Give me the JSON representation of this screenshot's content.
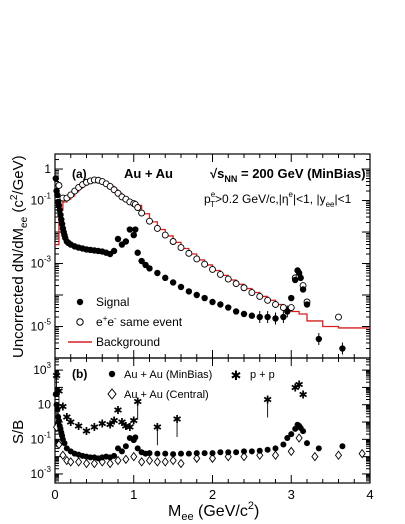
{
  "chart_data": [
    {
      "type": "scatter",
      "panel_label": "(a)",
      "title": "Au + Au",
      "energy_text": "√s",
      "energy_sub": "NN",
      "energy_value": " = 200 GeV (MinBias)",
      "cuts_text": "p",
      "cuts_sup": "e",
      "cuts_sub": "T",
      "cuts_rest": ">0.2 GeV/c,|η",
      "cuts_sup2": "e",
      "cuts_rest2": "|<1,  |y",
      "cuts_sub2": "ee",
      "cuts_rest3": "|<1",
      "ylabel": "Uncorrected dN/dM",
      "ylabel_sub": "ee",
      "ylabel_unit": " (c",
      "ylabel_sup": "2",
      "ylabel_tail": "/GeV)",
      "yscale": "log",
      "xlim": [
        0,
        4
      ],
      "ylim": [
        1e-06,
        3
      ],
      "y_ticks": [
        {
          "v": 1,
          "label": "1"
        },
        {
          "v": 0.1,
          "label": "10",
          "exp": "-1"
        },
        {
          "v": 0.001,
          "label": "10",
          "exp": "-3"
        },
        {
          "v": 1e-05,
          "label": "10",
          "exp": "-5"
        }
      ],
      "legend": {
        "placement": "bottom-left",
        "entries": [
          {
            "name": "Signal",
            "marker": "filled-circle"
          },
          {
            "name": "e",
            "sup": "+",
            "name2": "e",
            "sup2": "-",
            "name3": " same event",
            "marker": "open-circle"
          },
          {
            "name": "Background",
            "marker": "red-line"
          }
        ]
      },
      "series": [
        {
          "name": "Signal",
          "color": "#000000",
          "marker": "filled-circle",
          "x": [
            0.01,
            0.02,
            0.03,
            0.04,
            0.05,
            0.06,
            0.07,
            0.08,
            0.09,
            0.1,
            0.11,
            0.12,
            0.13,
            0.15,
            0.17,
            0.2,
            0.25,
            0.3,
            0.35,
            0.4,
            0.45,
            0.5,
            0.55,
            0.6,
            0.65,
            0.7,
            0.75,
            0.8,
            0.85,
            0.9,
            0.95,
            1.0,
            1.02,
            1.05,
            1.1,
            1.15,
            1.2,
            1.3,
            1.4,
            1.5,
            1.6,
            1.7,
            1.8,
            1.9,
            2.0,
            2.1,
            2.2,
            2.3,
            2.4,
            2.5,
            2.6,
            2.7,
            2.8,
            2.9,
            2.95,
            3.0,
            3.05,
            3.08,
            3.1,
            3.12,
            3.15,
            3.2,
            3.35,
            3.65
          ],
          "y": [
            0.5,
            0.2,
            0.15,
            0.09,
            0.07,
            0.05,
            0.035,
            0.025,
            0.018,
            0.013,
            0.01,
            0.008,
            0.0065,
            0.005,
            0.0045,
            0.004,
            0.0035,
            0.0032,
            0.003,
            0.0028,
            0.0027,
            0.0026,
            0.0025,
            0.0024,
            0.0022,
            0.002,
            0.0025,
            0.006,
            0.004,
            0.005,
            0.012,
            0.008,
            0.012,
            0.0022,
            0.0012,
            0.0009,
            0.0007,
            0.0005,
            0.00035,
            0.00025,
            0.00018,
            0.00013,
            0.0001,
            8e-05,
            6e-05,
            5e-05,
            4e-05,
            3e-05,
            2.5e-05,
            2.2e-05,
            2e-05,
            2e-05,
            1.8e-05,
            2e-05,
            3e-05,
            8e-05,
            0.0003,
            0.0006,
            0.0005,
            0.00035,
            0.00015,
            5e-05,
            4e-06,
            2e-06
          ]
        },
        {
          "name": "e+e- same event",
          "color": "#000000",
          "marker": "open-circle",
          "x": [
            0.05,
            0.1,
            0.15,
            0.2,
            0.25,
            0.3,
            0.35,
            0.4,
            0.45,
            0.5,
            0.55,
            0.6,
            0.65,
            0.7,
            0.75,
            0.8,
            0.85,
            0.9,
            0.95,
            1.0,
            1.02,
            1.05,
            1.1,
            1.2,
            1.3,
            1.4,
            1.5,
            1.6,
            1.7,
            1.8,
            1.9,
            2.0,
            2.1,
            2.2,
            2.3,
            2.4,
            2.5,
            2.6,
            2.7,
            2.8,
            2.9,
            3.0,
            3.05,
            3.1,
            3.15,
            3.2,
            3.6
          ],
          "y": [
            0.3,
            0.12,
            0.12,
            0.15,
            0.2,
            0.26,
            0.32,
            0.38,
            0.42,
            0.45,
            0.44,
            0.4,
            0.34,
            0.28,
            0.22,
            0.17,
            0.13,
            0.11,
            0.09,
            0.08,
            0.075,
            0.06,
            0.04,
            0.022,
            0.013,
            0.008,
            0.005,
            0.0032,
            0.0021,
            0.0014,
            0.00095,
            0.00065,
            0.00045,
            0.00032,
            0.00023,
            0.00017,
            0.00012,
            9e-05,
            6.8e-05,
            5e-05,
            4e-05,
            4e-05,
            0.00035,
            0.0004,
            0.0002,
            6e-05,
            2e-05
          ]
        },
        {
          "name": "Background",
          "color": "#d42020",
          "marker": "step-line",
          "x": [
            0.0,
            0.05,
            0.1,
            0.15,
            0.2,
            0.25,
            0.3,
            0.35,
            0.4,
            0.45,
            0.5,
            0.55,
            0.6,
            0.65,
            0.7,
            0.75,
            0.8,
            0.85,
            0.9,
            0.95,
            1.0,
            1.1,
            1.2,
            1.3,
            1.4,
            1.5,
            1.6,
            1.7,
            1.8,
            1.9,
            2.0,
            2.1,
            2.2,
            2.3,
            2.4,
            2.5,
            2.6,
            2.7,
            2.8,
            2.9,
            3.0,
            3.1,
            3.2,
            3.4,
            3.6,
            4.0
          ],
          "y": [
            0.004,
            0.05,
            0.09,
            0.11,
            0.14,
            0.19,
            0.25,
            0.31,
            0.37,
            0.41,
            0.44,
            0.44,
            0.4,
            0.34,
            0.28,
            0.22,
            0.17,
            0.13,
            0.1,
            0.085,
            0.07,
            0.038,
            0.021,
            0.012,
            0.0075,
            0.0047,
            0.003,
            0.002,
            0.0013,
            0.0009,
            0.0006,
            0.00042,
            0.0003,
            0.00022,
            0.00016,
            0.00012,
            9e-05,
            6.8e-05,
            5e-05,
            4e-05,
            3e-05,
            2.5e-05,
            1.5e-05,
            1e-05,
            9e-06,
            9e-06
          ]
        }
      ]
    },
    {
      "type": "scatter",
      "panel_label": "(b)",
      "ylabel": "S/B",
      "xlabel": "M",
      "xlabel_sub": "ee",
      "xlabel_unit": " (GeV/c",
      "xlabel_sup": "2",
      "xlabel_tail": ")",
      "yscale": "log",
      "xlim": [
        0,
        4
      ],
      "ylim": [
        0.0003,
        5000
      ],
      "x_ticks": [
        "0",
        "1",
        "2",
        "3",
        "4"
      ],
      "y_ticks": [
        {
          "v": 1000,
          "label": "10",
          "exp": "3"
        },
        {
          "v": 10,
          "label": "10"
        },
        {
          "v": 0.1,
          "label": "10",
          "exp": "-1"
        },
        {
          "v": 0.001,
          "label": "10",
          "exp": "-3"
        }
      ],
      "legend": {
        "placement": "top-left",
        "entries": [
          {
            "name": "Au + Au (MinBias)",
            "marker": "filled-circle"
          },
          {
            "name": "p + p",
            "marker": "star"
          },
          {
            "name": "Au + Au (Central)",
            "marker": "open-diamond"
          }
        ]
      },
      "series": [
        {
          "name": "Au + Au (MinBias)",
          "color": "#000000",
          "marker": "filled-circle",
          "x": [
            0.01,
            0.02,
            0.03,
            0.04,
            0.05,
            0.06,
            0.07,
            0.08,
            0.09,
            0.1,
            0.12,
            0.15,
            0.2,
            0.25,
            0.3,
            0.35,
            0.4,
            0.45,
            0.5,
            0.55,
            0.6,
            0.65,
            0.7,
            0.75,
            0.8,
            0.85,
            0.9,
            0.95,
            1.0,
            1.02,
            1.05,
            1.1,
            1.15,
            1.2,
            1.3,
            1.4,
            1.5,
            1.6,
            1.7,
            1.8,
            1.9,
            2.0,
            2.1,
            2.2,
            2.3,
            2.4,
            2.5,
            2.6,
            2.7,
            2.8,
            2.9,
            2.95,
            3.0,
            3.05,
            3.08,
            3.1,
            3.12,
            3.15,
            3.2,
            3.35,
            3.65
          ],
          "y": [
            40,
            10,
            5,
            2,
            1.2,
            0.6,
            0.4,
            0.25,
            0.16,
            0.1,
            0.06,
            0.03,
            0.02,
            0.015,
            0.013,
            0.011,
            0.01,
            0.009,
            0.009,
            0.008,
            0.009,
            0.01,
            0.009,
            0.011,
            0.03,
            0.02,
            0.04,
            0.12,
            0.09,
            0.13,
            0.03,
            0.018,
            0.015,
            0.016,
            0.015,
            0.015,
            0.014,
            0.015,
            0.015,
            0.016,
            0.016,
            0.016,
            0.018,
            0.018,
            0.018,
            0.02,
            0.02,
            0.022,
            0.025,
            0.03,
            0.05,
            0.12,
            0.2,
            0.4,
            0.7,
            0.6,
            0.45,
            0.3,
            0.06,
            0.03,
            0.04
          ]
        },
        {
          "name": "p + p",
          "color": "#000000",
          "marker": "star",
          "x": [
            0.02,
            0.05,
            0.1,
            0.15,
            0.2,
            0.3,
            0.4,
            0.5,
            0.6,
            0.7,
            0.75,
            0.8,
            0.85,
            0.9,
            0.95,
            1.0,
            1.05,
            1.3,
            1.55,
            2.7,
            3.05,
            3.1,
            3.15
          ],
          "y": [
            500,
            60,
            8,
            2,
            1,
            0.6,
            0.3,
            0.5,
            0.8,
            0.7,
            1.2,
            5,
            1,
            0.6,
            0.5,
            1.2,
            15,
            0.5,
            1.5,
            20,
            100,
            150,
            40
          ]
        },
        {
          "name": "Au + Au (Central)",
          "color": "#000000",
          "marker": "open-diamond",
          "x": [
            0.02,
            0.05,
            0.1,
            0.15,
            0.2,
            0.3,
            0.4,
            0.5,
            0.6,
            0.7,
            0.8,
            0.9,
            1.0,
            1.1,
            1.2,
            1.3,
            1.4,
            1.5,
            1.6,
            1.8,
            2.0,
            2.2,
            2.4,
            2.6,
            2.8,
            3.0,
            3.1,
            3.3,
            3.6,
            3.9
          ],
          "y": [
            0.5,
            0.05,
            0.012,
            0.006,
            0.005,
            0.005,
            0.004,
            0.004,
            0.005,
            0.004,
            0.006,
            0.007,
            0.01,
            0.005,
            0.006,
            0.005,
            0.005,
            0.006,
            0.004,
            0.008,
            0.008,
            0.01,
            0.01,
            0.012,
            0.012,
            0.02,
            0.12,
            0.01,
            0.012,
            0.015
          ]
        }
      ]
    }
  ]
}
